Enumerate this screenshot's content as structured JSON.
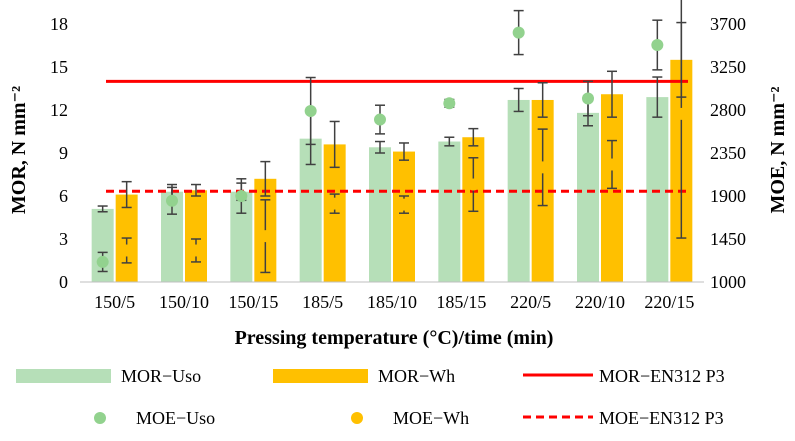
{
  "chart_data": {
    "type": "bar",
    "categories": [
      "150/5",
      "150/10",
      "150/15",
      "185/5",
      "185/10",
      "185/15",
      "220/5",
      "220/10",
      "220/15"
    ],
    "xlabel": "Pressing temperature (°C)/time (min)",
    "ylabel": "MOR, N mm⁻²",
    "y2label": "MOE, N mm⁻²",
    "ylim": [
      0,
      18
    ],
    "yticks": [
      0,
      3,
      6,
      9,
      12,
      15,
      18
    ],
    "y2lim": [
      1000,
      3700
    ],
    "y2ticks": [
      1000,
      1450,
      1900,
      2350,
      2800,
      3250,
      3700
    ],
    "grid": false,
    "legend_position": "bottom",
    "series": [
      {
        "name": "MOR−Uso",
        "kind": "bar",
        "axis": "left",
        "color": "#b6dfb8",
        "values": [
          5.1,
          6.3,
          6.3,
          10.0,
          9.4,
          9.8,
          12.7,
          11.8,
          12.9
        ],
        "errors": [
          0.2,
          0.5,
          0.6,
          1.8,
          0.4,
          0.3,
          0.8,
          0.9,
          1.4
        ]
      },
      {
        "name": "MOR−Wh",
        "kind": "bar",
        "axis": "left",
        "color": "#ffc000",
        "values": [
          6.1,
          6.4,
          7.2,
          9.6,
          9.1,
          10.1,
          12.7,
          13.1,
          15.5
        ],
        "errors": [
          0.9,
          0.4,
          1.2,
          1.6,
          0.6,
          0.6,
          1.2,
          1.6,
          2.6
        ]
      },
      {
        "name": "MOE−Uso",
        "kind": "scatter",
        "axis": "right",
        "color": "#92d28e",
        "values": [
          1210,
          1850,
          1900,
          2790,
          2700,
          2870,
          3610,
          2920,
          3480
        ],
        "errors": [
          100,
          140,
          180,
          350,
          150,
          40,
          230,
          180,
          260
        ]
      },
      {
        "name": "MOE−Wh",
        "kind": "scatter",
        "axis": "right",
        "color": "#ffc000",
        "values": [
          1330,
          1330,
          1480,
          1820,
          1810,
          2020,
          2200,
          2230,
          2760
        ],
        "errors": [
          130,
          120,
          380,
          100,
          90,
          280,
          400,
          250,
          1300
        ]
      },
      {
        "name": "MOR−EN312 P3",
        "kind": "line",
        "axis": "left",
        "color": "#ff0000",
        "dash": "solid",
        "value": 14
      },
      {
        "name": "MOE−EN312 P3",
        "kind": "line",
        "axis": "right",
        "color": "#ff0000",
        "dash": "dashed",
        "value": 1950
      }
    ]
  }
}
